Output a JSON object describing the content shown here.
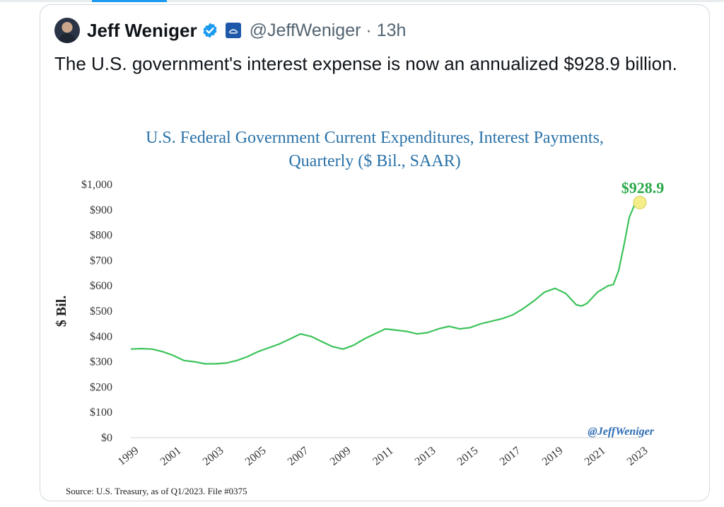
{
  "tweet": {
    "display_name": "Jeff Weniger",
    "handle": "@JeffWeniger",
    "separator": "·",
    "time": "13h",
    "text": "The U.S. government's interest expense is now an annualized $928.9 billion.",
    "verified_color": "#1d9bf0",
    "avatar_icon": "user-avatar"
  },
  "chart_data": {
    "type": "line",
    "title_line1": "U.S. Federal Government Current Expenditures, Interest Payments,",
    "title_line2": "Quarterly ($ Bil., SAAR)",
    "ylabel": "$ Bil.",
    "ylim": [
      0,
      1000
    ],
    "y_ticks": [
      "$0",
      "$100",
      "$200",
      "$300",
      "$400",
      "$500",
      "$600",
      "$700",
      "$800",
      "$900",
      "$1,000"
    ],
    "x_ticks": [
      "1999",
      "2001",
      "2003",
      "2005",
      "2007",
      "2009",
      "2011",
      "2013",
      "2015",
      "2017",
      "2019",
      "2021",
      "2023"
    ],
    "xlim": [
      1999,
      2023
    ],
    "series": [
      {
        "color": "#3cc35a",
        "x": [
          1999,
          1999.5,
          2000,
          2000.5,
          2001,
          2001.5,
          2002,
          2002.5,
          2003,
          2003.5,
          2004,
          2004.5,
          2005,
          2005.5,
          2006,
          2006.5,
          2007,
          2007.5,
          2008,
          2008.5,
          2009,
          2009.5,
          2010,
          2010.5,
          2011,
          2011.5,
          2012,
          2012.5,
          2013,
          2013.5,
          2014,
          2014.5,
          2015,
          2015.5,
          2016,
          2016.5,
          2017,
          2017.5,
          2018,
          2018.5,
          2019,
          2019.5,
          2020,
          2020.25,
          2020.5,
          2021,
          2021.5,
          2021.75,
          2022,
          2022.25,
          2022.5,
          2022.75,
          2023
        ],
        "values": [
          350,
          352,
          350,
          340,
          325,
          305,
          300,
          292,
          292,
          295,
          305,
          320,
          340,
          355,
          370,
          390,
          410,
          400,
          380,
          360,
          350,
          365,
          390,
          410,
          430,
          425,
          420,
          410,
          415,
          430,
          440,
          430,
          435,
          450,
          460,
          470,
          485,
          510,
          540,
          575,
          590,
          570,
          525,
          520,
          530,
          575,
          600,
          605,
          660,
          760,
          870,
          920,
          928.9
        ]
      }
    ],
    "annotation": "$928.9",
    "watermark": "@JeffWeniger",
    "source": "Source: U.S. Treasury, as of Q1/2023. File #0375",
    "colors": {
      "title": "#2a72a8",
      "line": "#3cc35a",
      "annotation": "#2aa84a",
      "highlight": "#f3ee8a",
      "watermark": "#2f6db5"
    }
  }
}
